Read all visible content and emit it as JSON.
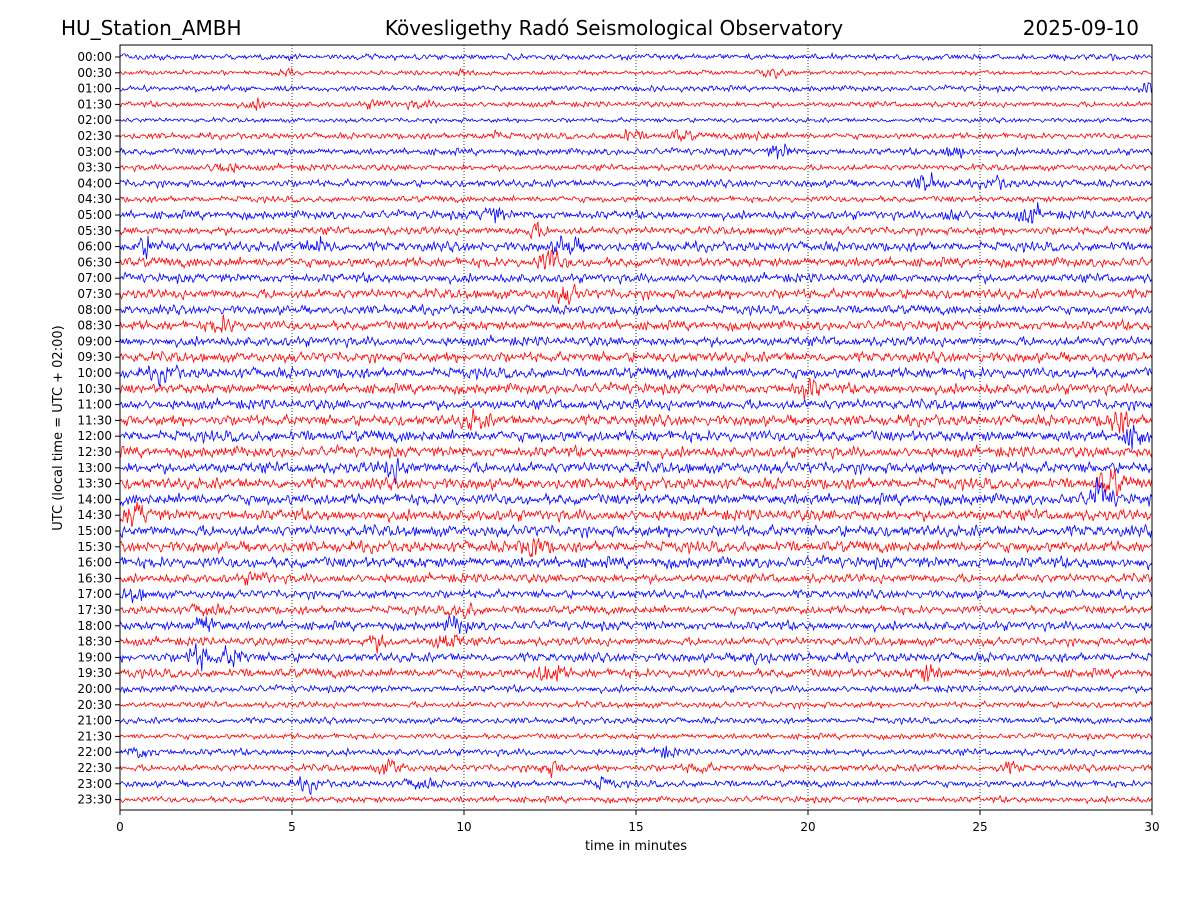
{
  "header": {
    "station": "HU_Station_AMBH",
    "observatory": "Kövesligethy Radó Seismological Observatory",
    "date": "2025-09-10"
  },
  "chart_data": {
    "type": "line",
    "subtype": "helicorder",
    "title": "Kövesligethy Radó Seismological Observatory",
    "xlabel": "time in minutes",
    "ylabel": "UTC (local time = UTC + 02:00)",
    "xlim": [
      0,
      30
    ],
    "x_ticks": [
      0,
      5,
      10,
      15,
      20,
      25,
      30
    ],
    "y_tick_labels": [
      "00:00",
      "00:30",
      "01:00",
      "01:30",
      "02:00",
      "02:30",
      "03:00",
      "03:30",
      "04:00",
      "04:30",
      "05:00",
      "05:30",
      "06:00",
      "06:30",
      "07:00",
      "07:30",
      "08:00",
      "08:30",
      "09:00",
      "09:30",
      "10:00",
      "10:30",
      "11:00",
      "11:30",
      "12:00",
      "12:30",
      "13:00",
      "13:30",
      "14:00",
      "14:30",
      "15:00",
      "15:30",
      "16:00",
      "16:30",
      "17:00",
      "17:30",
      "18:00",
      "18:30",
      "19:00",
      "19:30",
      "20:00",
      "20:30",
      "21:00",
      "21:30",
      "22:00",
      "22:30",
      "23:00",
      "23:30"
    ],
    "grid": "vertical dotted lines at x ticks",
    "line_colors": [
      "#0000ff",
      "#ff0000"
    ],
    "traces_alternate_colors": true,
    "trace_amplitude": [
      0.5,
      0.4,
      0.5,
      0.5,
      0.4,
      0.55,
      0.6,
      0.55,
      0.65,
      0.55,
      0.75,
      0.7,
      0.85,
      0.85,
      0.8,
      0.85,
      0.8,
      0.85,
      0.85,
      0.9,
      0.95,
      0.9,
      0.9,
      0.95,
      1.0,
      0.95,
      1.0,
      1.0,
      1.0,
      1.0,
      1.0,
      1.0,
      1.0,
      0.8,
      0.75,
      0.75,
      0.8,
      0.75,
      0.8,
      0.8,
      0.6,
      0.55,
      0.55,
      0.5,
      0.6,
      0.6,
      0.6,
      0.55
    ],
    "bursts": [
      {
        "row": 1,
        "minute": 4.8,
        "strength": 2.5
      },
      {
        "row": 1,
        "minute": 19.0,
        "strength": 3.0
      },
      {
        "row": 1,
        "minute": 10.0,
        "strength": 1.8
      },
      {
        "row": 2,
        "minute": 30.0,
        "strength": 3.0
      },
      {
        "row": 3,
        "minute": 4.0,
        "strength": 2.2
      },
      {
        "row": 3,
        "minute": 7.5,
        "strength": 2.2
      },
      {
        "row": 3,
        "minute": 8.7,
        "strength": 2.0
      },
      {
        "row": 5,
        "minute": 10.8,
        "strength": 2.2
      },
      {
        "row": 5,
        "minute": 14.8,
        "strength": 2.8
      },
      {
        "row": 5,
        "minute": 16.3,
        "strength": 2.4
      },
      {
        "row": 5,
        "minute": 18.5,
        "strength": 2.0
      },
      {
        "row": 6,
        "minute": 19.2,
        "strength": 2.8
      },
      {
        "row": 6,
        "minute": 24.3,
        "strength": 3.0
      },
      {
        "row": 7,
        "minute": 3.0,
        "strength": 2.8
      },
      {
        "row": 8,
        "minute": 23.5,
        "strength": 3.2
      },
      {
        "row": 8,
        "minute": 25.5,
        "strength": 2.2
      },
      {
        "row": 10,
        "minute": 10.8,
        "strength": 2.5
      },
      {
        "row": 10,
        "minute": 24.2,
        "strength": 2.2
      },
      {
        "row": 10,
        "minute": 26.5,
        "strength": 2.6
      },
      {
        "row": 11,
        "minute": 12.0,
        "strength": 2.5
      },
      {
        "row": 12,
        "minute": 0.8,
        "strength": 2.5
      },
      {
        "row": 12,
        "minute": 5.8,
        "strength": 2.5
      },
      {
        "row": 12,
        "minute": 13.0,
        "strength": 3.0
      },
      {
        "row": 13,
        "minute": 12.5,
        "strength": 3.2
      },
      {
        "row": 15,
        "minute": 13.0,
        "strength": 2.5
      },
      {
        "row": 17,
        "minute": 3.0,
        "strength": 2.4
      },
      {
        "row": 20,
        "minute": 1.3,
        "strength": 2.2
      },
      {
        "row": 21,
        "minute": 20.0,
        "strength": 2.6
      },
      {
        "row": 23,
        "minute": 10.3,
        "strength": 2.4
      },
      {
        "row": 23,
        "minute": 29.0,
        "strength": 2.8
      },
      {
        "row": 24,
        "minute": 29.5,
        "strength": 2.5
      },
      {
        "row": 26,
        "minute": 8.0,
        "strength": 2.6
      },
      {
        "row": 27,
        "minute": 28.8,
        "strength": 3.0
      },
      {
        "row": 28,
        "minute": 28.5,
        "strength": 3.2
      },
      {
        "row": 29,
        "minute": 0.5,
        "strength": 2.6
      },
      {
        "row": 31,
        "minute": 12.0,
        "strength": 2.6
      },
      {
        "row": 33,
        "minute": 4.0,
        "strength": 2.0
      },
      {
        "row": 34,
        "minute": 0.4,
        "strength": 2.2
      },
      {
        "row": 35,
        "minute": 2.5,
        "strength": 2.2
      },
      {
        "row": 35,
        "minute": 10.0,
        "strength": 2.4
      },
      {
        "row": 36,
        "minute": 2.5,
        "strength": 3.0
      },
      {
        "row": 36,
        "minute": 9.8,
        "strength": 2.6
      },
      {
        "row": 37,
        "minute": 9.5,
        "strength": 3.0
      },
      {
        "row": 37,
        "minute": 7.5,
        "strength": 2.4
      },
      {
        "row": 38,
        "minute": 2.3,
        "strength": 3.4
      },
      {
        "row": 38,
        "minute": 3.3,
        "strength": 3.0
      },
      {
        "row": 38,
        "minute": 18.5,
        "strength": 2.2
      },
      {
        "row": 39,
        "minute": 12.5,
        "strength": 3.2
      },
      {
        "row": 39,
        "minute": 23.5,
        "strength": 2.6
      },
      {
        "row": 44,
        "minute": 0.6,
        "strength": 2.4
      },
      {
        "row": 44,
        "minute": 15.8,
        "strength": 2.2
      },
      {
        "row": 45,
        "minute": 7.9,
        "strength": 3.2
      },
      {
        "row": 45,
        "minute": 12.5,
        "strength": 2.8
      },
      {
        "row": 45,
        "minute": 16.8,
        "strength": 2.2
      },
      {
        "row": 45,
        "minute": 25.8,
        "strength": 2.2
      },
      {
        "row": 46,
        "minute": 5.5,
        "strength": 2.6
      },
      {
        "row": 46,
        "minute": 8.7,
        "strength": 2.6
      },
      {
        "row": 46,
        "minute": 14.0,
        "strength": 2.4
      }
    ]
  }
}
